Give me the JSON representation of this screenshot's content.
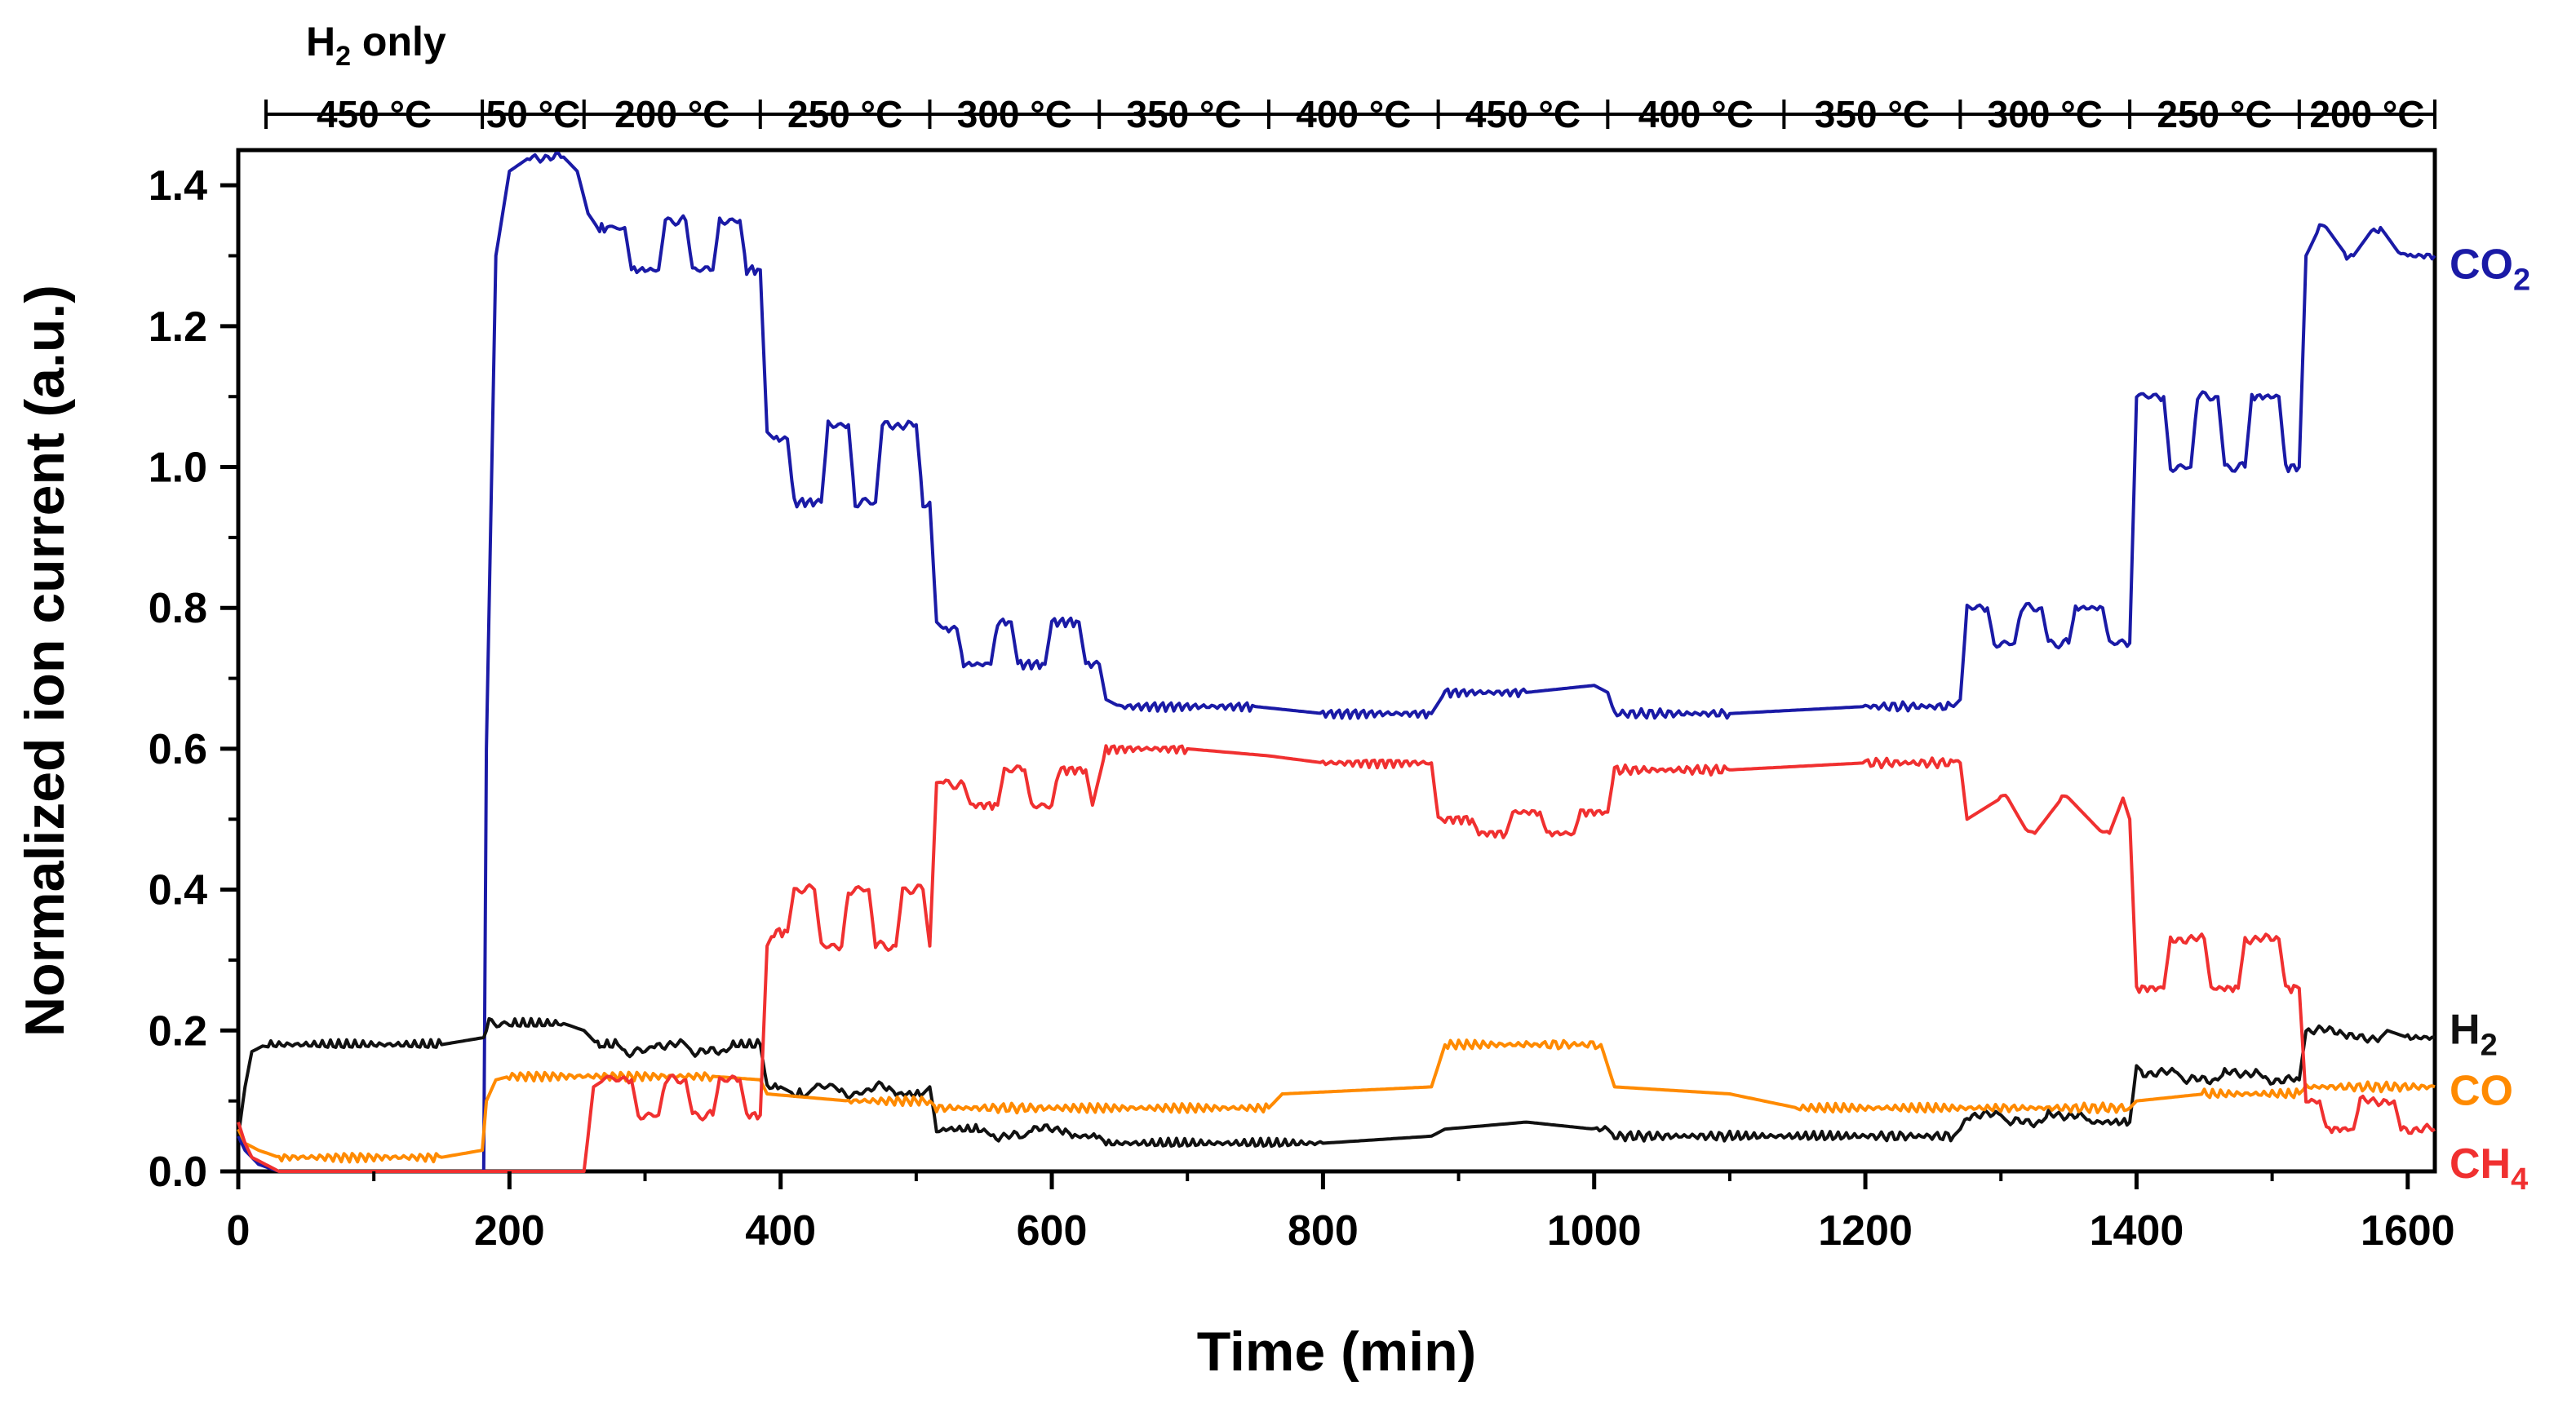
{
  "chart_data": {
    "type": "line",
    "xlabel": "Time (min)",
    "ylabel": "Normalized ion current (a.u.)",
    "xlim": [
      0,
      1620
    ],
    "ylim": [
      0,
      1.45
    ],
    "x_ticks": [
      0,
      200,
      400,
      600,
      800,
      1000,
      1200,
      1400,
      1600
    ],
    "x_tick_labels": [
      "0",
      "200",
      "400",
      "600",
      "800",
      "1000",
      "1200",
      "1400",
      "1600"
    ],
    "y_ticks": [
      0.0,
      0.2,
      0.4,
      0.6,
      0.8,
      1.0,
      1.2,
      1.4
    ],
    "y_tick_labels": [
      "0.0",
      "0.2",
      "0.4",
      "0.6",
      "0.8",
      "1.0",
      "1.2",
      "1.4"
    ],
    "top_annotation": "H2 only",
    "segments": [
      {
        "label": "450 °C",
        "start": 0,
        "end": 180
      },
      {
        "label": "50 °C",
        "start": 180,
        "end": 255
      },
      {
        "label": "200 °C",
        "start": 255,
        "end": 385
      },
      {
        "label": "250 °C",
        "start": 385,
        "end": 510
      },
      {
        "label": "300 °C",
        "start": 510,
        "end": 635
      },
      {
        "label": "350 °C",
        "start": 635,
        "end": 760
      },
      {
        "label": "400 °C",
        "start": 760,
        "end": 885
      },
      {
        "label": "450 °C",
        "start": 885,
        "end": 1010
      },
      {
        "label": "400 °C",
        "start": 1010,
        "end": 1140
      },
      {
        "label": "350 °C",
        "start": 1140,
        "end": 1270
      },
      {
        "label": "300 °C",
        "start": 1270,
        "end": 1395
      },
      {
        "label": "250 °C",
        "start": 1395,
        "end": 1520
      },
      {
        "label": "200 °C",
        "start": 1520,
        "end": 1620
      }
    ],
    "series": [
      {
        "name": "CO2",
        "label_main": "CO",
        "label_sub": "2",
        "color": "#1a1aa6",
        "x": [
          0,
          5,
          15,
          30,
          40,
          50,
          181,
          183,
          190,
          200,
          215,
          240,
          250,
          258,
          265,
          268,
          272,
          285,
          290,
          310,
          315,
          330,
          335,
          350,
          355,
          370,
          375,
          385,
          390,
          395,
          405,
          410,
          430,
          435,
          450,
          455,
          470,
          475,
          500,
          505,
          510,
          515,
          520,
          530,
          535,
          555,
          560,
          570,
          575,
          595,
          600,
          620,
          625,
          635,
          640,
          650,
          700,
          750,
          800,
          880,
          890,
          950,
          1000,
          1010,
          1015,
          1100,
          1200,
          1265,
          1270,
          1275,
          1290,
          1295,
          1310,
          1315,
          1330,
          1335,
          1350,
          1355,
          1375,
          1380,
          1395,
          1400,
          1405,
          1420,
          1425,
          1440,
          1445,
          1460,
          1465,
          1480,
          1485,
          1505,
          1510,
          1520,
          1525,
          1535,
          1540,
          1555,
          1560,
          1575,
          1580,
          1595,
          1600,
          1620
        ],
        "y": [
          0.05,
          0.03,
          0.01,
          0.0,
          0.0,
          0.0,
          0.0,
          0.6,
          1.3,
          1.42,
          1.44,
          1.44,
          1.42,
          1.36,
          1.34,
          1.34,
          1.34,
          1.34,
          1.28,
          1.28,
          1.35,
          1.35,
          1.28,
          1.28,
          1.35,
          1.35,
          1.28,
          1.28,
          1.05,
          1.04,
          1.04,
          0.95,
          0.95,
          1.06,
          1.06,
          0.95,
          0.95,
          1.06,
          1.06,
          0.95,
          0.95,
          0.78,
          0.77,
          0.77,
          0.72,
          0.72,
          0.78,
          0.78,
          0.72,
          0.72,
          0.78,
          0.78,
          0.72,
          0.72,
          0.67,
          0.66,
          0.66,
          0.66,
          0.65,
          0.65,
          0.68,
          0.68,
          0.69,
          0.68,
          0.65,
          0.65,
          0.66,
          0.66,
          0.67,
          0.8,
          0.8,
          0.75,
          0.75,
          0.8,
          0.8,
          0.75,
          0.75,
          0.8,
          0.8,
          0.75,
          0.75,
          1.1,
          1.1,
          1.1,
          1.0,
          1.0,
          1.1,
          1.1,
          1.0,
          1.0,
          1.1,
          1.1,
          1.0,
          1.0,
          1.3,
          1.34,
          1.34,
          1.3,
          1.3,
          1.34,
          1.34,
          1.3,
          1.3,
          1.3
        ]
      },
      {
        "name": "H2",
        "label_main": "H",
        "label_sub": "2",
        "color": "#111111",
        "x": [
          0,
          5,
          10,
          20,
          50,
          100,
          150,
          181,
          185,
          200,
          240,
          255,
          265,
          268,
          280,
          285,
          300,
          305,
          330,
          335,
          360,
          365,
          385,
          390,
          400,
          410,
          420,
          425,
          440,
          445,
          460,
          465,
          480,
          485,
          505,
          510,
          515,
          520,
          550,
          555,
          580,
          585,
          610,
          615,
          635,
          640,
          700,
          760,
          800,
          880,
          890,
          950,
          1000,
          1010,
          1015,
          1100,
          1200,
          1265,
          1270,
          1275,
          1300,
          1305,
          1330,
          1335,
          1360,
          1365,
          1395,
          1400,
          1405,
          1430,
          1435,
          1460,
          1465,
          1490,
          1495,
          1520,
          1525,
          1550,
          1555,
          1580,
          1585,
          1600,
          1620
        ],
        "y": [
          0.05,
          0.12,
          0.17,
          0.18,
          0.18,
          0.18,
          0.18,
          0.19,
          0.21,
          0.21,
          0.21,
          0.2,
          0.18,
          0.18,
          0.18,
          0.17,
          0.17,
          0.18,
          0.18,
          0.17,
          0.17,
          0.18,
          0.18,
          0.12,
          0.12,
          0.11,
          0.11,
          0.12,
          0.12,
          0.11,
          0.11,
          0.12,
          0.12,
          0.11,
          0.11,
          0.12,
          0.06,
          0.06,
          0.06,
          0.05,
          0.05,
          0.06,
          0.06,
          0.05,
          0.05,
          0.04,
          0.04,
          0.04,
          0.04,
          0.05,
          0.06,
          0.07,
          0.06,
          0.06,
          0.05,
          0.05,
          0.05,
          0.05,
          0.06,
          0.08,
          0.08,
          0.07,
          0.07,
          0.08,
          0.08,
          0.07,
          0.07,
          0.15,
          0.14,
          0.14,
          0.13,
          0.13,
          0.14,
          0.14,
          0.13,
          0.13,
          0.2,
          0.2,
          0.19,
          0.19,
          0.2,
          0.19,
          0.19
        ]
      },
      {
        "name": "CO",
        "label_main": "CO",
        "label_sub": "",
        "color": "#ff8a00",
        "x": [
          0,
          5,
          15,
          30,
          60,
          100,
          150,
          180,
          183,
          190,
          200,
          250,
          300,
          350,
          385,
          390,
          450,
          510,
          515,
          600,
          700,
          760,
          770,
          880,
          890,
          950,
          1005,
          1015,
          1100,
          1150,
          1200,
          1270,
          1300,
          1395,
          1400,
          1450,
          1520,
          1525,
          1620
        ],
        "y": [
          0.06,
          0.04,
          0.03,
          0.02,
          0.02,
          0.02,
          0.02,
          0.03,
          0.1,
          0.13,
          0.135,
          0.135,
          0.135,
          0.135,
          0.13,
          0.11,
          0.1,
          0.1,
          0.09,
          0.09,
          0.09,
          0.09,
          0.11,
          0.12,
          0.18,
          0.18,
          0.18,
          0.12,
          0.11,
          0.09,
          0.09,
          0.09,
          0.09,
          0.09,
          0.1,
          0.11,
          0.11,
          0.12,
          0.12
        ]
      },
      {
        "name": "CH4",
        "label_main": "CH",
        "label_sub": "4",
        "color": "#f03030",
        "x": [
          0,
          5,
          10,
          20,
          30,
          50,
          100,
          150,
          180,
          200,
          250,
          255,
          258,
          262,
          270,
          275,
          290,
          295,
          310,
          315,
          330,
          335,
          350,
          355,
          370,
          375,
          385,
          390,
          395,
          405,
          410,
          425,
          430,
          445,
          450,
          465,
          470,
          485,
          490,
          505,
          510,
          515,
          520,
          535,
          540,
          560,
          565,
          580,
          585,
          600,
          605,
          625,
          630,
          640,
          700,
          760,
          800,
          880,
          885,
          890,
          910,
          915,
          935,
          940,
          960,
          965,
          985,
          990,
          1010,
          1015,
          1100,
          1200,
          1265,
          1270,
          1275,
          1300,
          1305,
          1320,
          1325,
          1345,
          1350,
          1375,
          1380,
          1390,
          1395,
          1400,
          1420,
          1425,
          1450,
          1455,
          1475,
          1480,
          1505,
          1510,
          1520,
          1525,
          1535,
          1540,
          1560,
          1565,
          1590,
          1595,
          1620
        ],
        "y": [
          0.07,
          0.04,
          0.02,
          0.01,
          0.0,
          0.0,
          0.0,
          0.0,
          0.0,
          0.0,
          0.0,
          0.0,
          0.05,
          0.12,
          0.13,
          0.13,
          0.13,
          0.08,
          0.08,
          0.13,
          0.13,
          0.08,
          0.08,
          0.13,
          0.13,
          0.08,
          0.08,
          0.32,
          0.34,
          0.34,
          0.4,
          0.4,
          0.32,
          0.32,
          0.4,
          0.4,
          0.32,
          0.32,
          0.4,
          0.4,
          0.32,
          0.55,
          0.55,
          0.55,
          0.52,
          0.52,
          0.57,
          0.57,
          0.52,
          0.52,
          0.57,
          0.57,
          0.52,
          0.6,
          0.6,
          0.59,
          0.58,
          0.58,
          0.5,
          0.5,
          0.5,
          0.48,
          0.48,
          0.51,
          0.51,
          0.48,
          0.48,
          0.51,
          0.51,
          0.57,
          0.57,
          0.58,
          0.58,
          0.58,
          0.5,
          0.53,
          0.53,
          0.48,
          0.48,
          0.53,
          0.53,
          0.48,
          0.48,
          0.53,
          0.5,
          0.26,
          0.26,
          0.33,
          0.33,
          0.26,
          0.26,
          0.33,
          0.33,
          0.26,
          0.26,
          0.1,
          0.1,
          0.06,
          0.06,
          0.1,
          0.1,
          0.06,
          0.06
        ]
      }
    ]
  }
}
